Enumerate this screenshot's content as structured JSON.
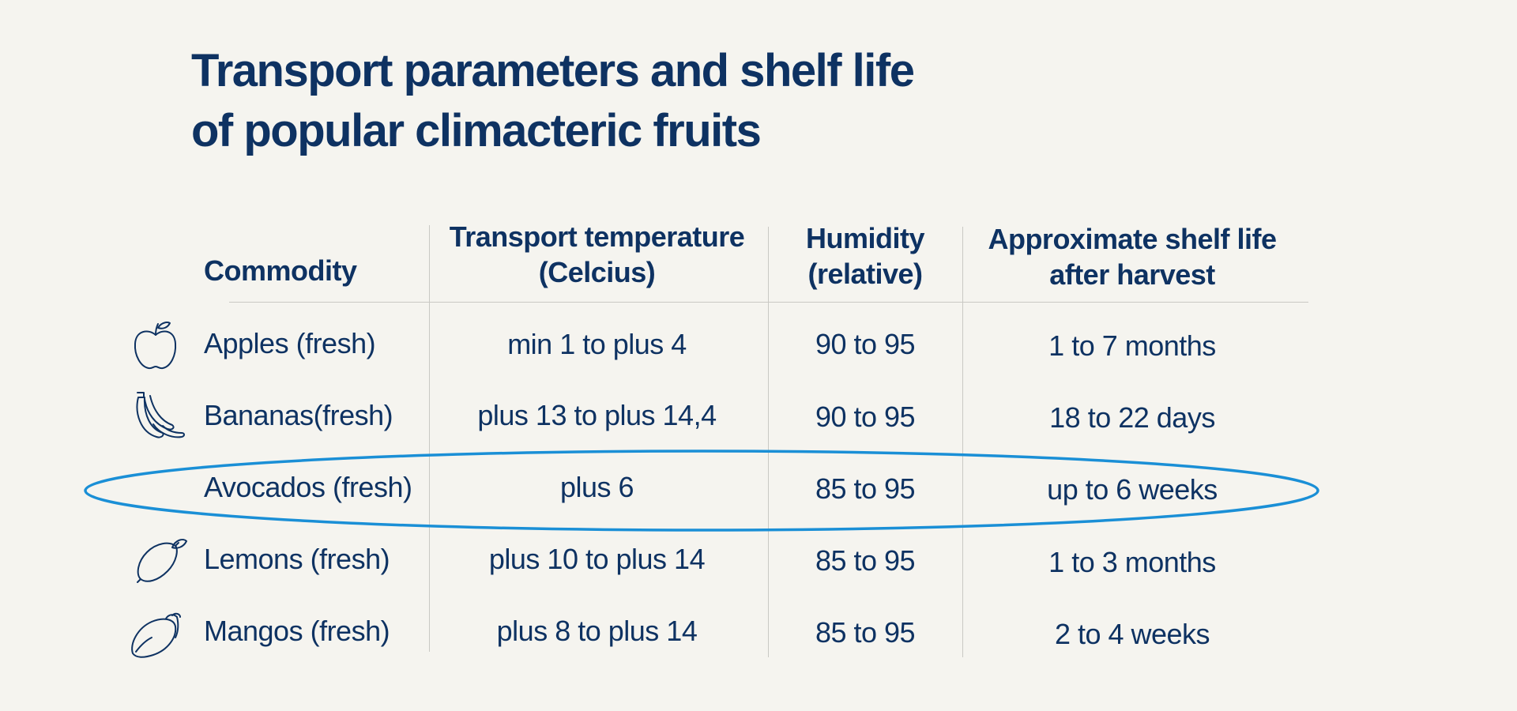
{
  "title": {
    "line1": "Transport parameters and shelf life",
    "line2": "of popular climacteric fruits"
  },
  "columns": {
    "commodity": "Commodity",
    "temperature": [
      "Transport temperature",
      "(Celcius)"
    ],
    "humidity": [
      "Humidity",
      "(relative)"
    ],
    "shelf_life": [
      "Approximate shelf life",
      "after harvest"
    ]
  },
  "rows": [
    {
      "commodity": "Apples (fresh)",
      "temperature": "min 1 to plus 4",
      "humidity": "90 to 95",
      "shelf_life": "1 to 7 months",
      "icon": "apple-icon"
    },
    {
      "commodity": "Bananas(fresh)",
      "temperature": "plus 13 to plus 14,4",
      "humidity": "90 to 95",
      "shelf_life": "18 to 22 days",
      "icon": "banana-icon"
    },
    {
      "commodity": "Avocados (fresh)",
      "temperature": "plus 6",
      "humidity": "85 to 95",
      "shelf_life": "up to 6 weeks",
      "icon": null,
      "highlighted": true
    },
    {
      "commodity": "Lemons (fresh)",
      "temperature": "plus 10 to plus 14",
      "humidity": "85 to 95",
      "shelf_life": "1 to 3 months",
      "icon": "lemon-icon"
    },
    {
      "commodity": "Mangos (fresh)",
      "temperature": "plus 8 to plus 14",
      "humidity": "85 to 95",
      "shelf_life": "2 to 4 weeks",
      "icon": "mango-icon"
    }
  ],
  "colors": {
    "text": "#0e3262",
    "background": "#f5f4ef",
    "highlight": "#1a8fd6",
    "grid": "#c9c9c4"
  }
}
